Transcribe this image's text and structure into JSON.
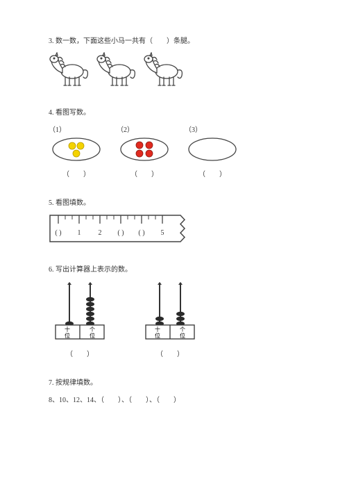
{
  "q3": {
    "text_before": "3. 数一数，下面这些小马一共有（",
    "blank": "　　",
    "text_after": "）条腿。",
    "horse_count": 3,
    "colors": {
      "outline": "#444444",
      "fill": "#ffffff"
    }
  },
  "q4": {
    "title": "4. 看图写数。",
    "items": [
      {
        "label": "（1）",
        "dots": 3,
        "dot_color": "#f4d300",
        "dot_stroke": "#b89b00",
        "answer": "（　　）"
      },
      {
        "label": "（2）",
        "dots": 4,
        "dot_color": "#e12a1f",
        "dot_stroke": "#8a1a13",
        "answer": "（　　）"
      },
      {
        "label": "（3）",
        "dots": 0,
        "dot_color": "#ffffff",
        "dot_stroke": "#ffffff",
        "answer": "（　　）"
      }
    ],
    "oval_stroke": "#444444",
    "oval_fill": "#ffffff"
  },
  "q5": {
    "title": "5. 看图填数。",
    "ruler": {
      "symbols": [
        "(  )",
        "1",
        "2",
        "(  )",
        "(  )",
        "5"
      ],
      "outline": "#444444",
      "fill": "#ffffff"
    }
  },
  "q6": {
    "title": "6. 写出计算器上表示的数。",
    "items": [
      {
        "tens_beads": 1,
        "ones_beads": 6,
        "tens_label": "十位",
        "ones_label": "个位",
        "answer": "（　　）"
      },
      {
        "tens_beads": 2,
        "ones_beads": 3,
        "tens_label": "十位",
        "ones_label": "个位",
        "answer": "（　　）"
      }
    ],
    "colors": {
      "rod": "#333333",
      "bead_fill": "#2b2b2b",
      "box_stroke": "#333333",
      "box_fill": "#ffffff"
    }
  },
  "q7": {
    "title": "7. 按规律填数。",
    "sequence": "8、10、12、14、（　　）、（　　）、（　　）"
  }
}
